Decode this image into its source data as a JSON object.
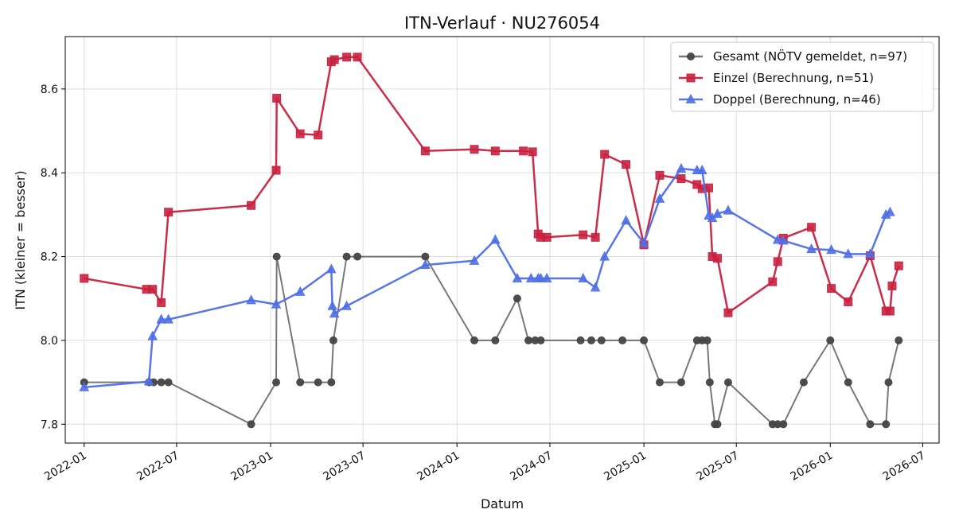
{
  "chart_data": {
    "type": "line",
    "title": "ITN-Verlauf · NU276054",
    "xlabel": "Datum",
    "ylabel": "ITN  (kleiner = besser)",
    "xlim": [
      "2021-11-25",
      "2026-08-02"
    ],
    "ylim": [
      7.755,
      8.725
    ],
    "x_ticks": [
      "2022-01",
      "2022-07",
      "2023-01",
      "2023-07",
      "2024-01",
      "2024-07",
      "2025-01",
      "2025-07",
      "2026-01",
      "2026-07"
    ],
    "y_ticks": [
      7.8,
      8.0,
      8.2,
      8.4,
      8.6
    ],
    "grid": true,
    "legend_position": "top-right",
    "series": [
      {
        "name": "Gesamt (NÖTV gemeldet, n=97)",
        "color": "#444444",
        "marker": "circle",
        "points": [
          [
            "2022-01-01",
            7.9
          ],
          [
            "2022-05-08",
            7.9
          ],
          [
            "2022-05-17",
            7.9
          ],
          [
            "2022-06-01",
            7.9
          ],
          [
            "2022-06-15",
            7.9
          ],
          [
            "2022-11-24",
            7.8
          ],
          [
            "2023-01-12",
            7.9
          ],
          [
            "2023-01-13",
            8.2
          ],
          [
            "2023-02-28",
            7.9
          ],
          [
            "2023-04-04",
            7.9
          ],
          [
            "2023-04-30",
            7.9
          ],
          [
            "2023-05-04",
            8.0
          ],
          [
            "2023-05-30",
            8.2
          ],
          [
            "2023-06-20",
            8.2
          ],
          [
            "2023-10-31",
            8.2
          ],
          [
            "2024-02-04",
            8.0
          ],
          [
            "2024-03-16",
            8.0
          ],
          [
            "2024-04-28",
            8.1
          ],
          [
            "2024-05-20",
            8.0
          ],
          [
            "2024-06-02",
            8.0
          ],
          [
            "2024-06-13",
            8.0
          ],
          [
            "2024-08-30",
            8.0
          ],
          [
            "2024-09-20",
            8.0
          ],
          [
            "2024-10-10",
            8.0
          ],
          [
            "2024-11-20",
            8.0
          ],
          [
            "2025-01-01",
            8.0
          ],
          [
            "2025-02-01",
            7.9
          ],
          [
            "2025-03-15",
            7.9
          ],
          [
            "2025-04-15",
            8.0
          ],
          [
            "2025-04-25",
            8.0
          ],
          [
            "2025-05-05",
            8.0
          ],
          [
            "2025-05-10",
            7.9
          ],
          [
            "2025-05-20",
            7.8
          ],
          [
            "2025-05-25",
            7.8
          ],
          [
            "2025-06-15",
            7.9
          ],
          [
            "2025-09-10",
            7.8
          ],
          [
            "2025-09-20",
            7.8
          ],
          [
            "2025-10-01",
            7.8
          ],
          [
            "2025-11-10",
            7.9
          ],
          [
            "2026-01-01",
            8.0
          ],
          [
            "2026-02-05",
            7.9
          ],
          [
            "2026-03-20",
            7.8
          ],
          [
            "2026-04-20",
            7.8
          ],
          [
            "2026-04-25",
            7.9
          ],
          [
            "2026-05-15",
            8.0
          ]
        ]
      },
      {
        "name": "Einzel (Berechnung, n=51)",
        "color": "#c8213f",
        "marker": "square",
        "points": [
          [
            "2022-01-01",
            8.148
          ],
          [
            "2022-05-03",
            8.122
          ],
          [
            "2022-05-15",
            8.122
          ],
          [
            "2022-06-01",
            8.09
          ],
          [
            "2022-06-15",
            8.306
          ],
          [
            "2022-11-24",
            8.322
          ],
          [
            "2023-01-12",
            8.406
          ],
          [
            "2023-01-13",
            8.578
          ],
          [
            "2023-02-28",
            8.493
          ],
          [
            "2023-04-04",
            8.49
          ],
          [
            "2023-04-30",
            8.665
          ],
          [
            "2023-05-06",
            8.67
          ],
          [
            "2023-05-30",
            8.676
          ],
          [
            "2023-06-20",
            8.676
          ],
          [
            "2023-10-31",
            8.452
          ],
          [
            "2024-02-04",
            8.456
          ],
          [
            "2024-03-16",
            8.452
          ],
          [
            "2024-05-10",
            8.452
          ],
          [
            "2024-05-28",
            8.45
          ],
          [
            "2024-06-08",
            8.254
          ],
          [
            "2024-06-13",
            8.246
          ],
          [
            "2024-06-25",
            8.246
          ],
          [
            "2024-09-04",
            8.252
          ],
          [
            "2024-09-28",
            8.246
          ],
          [
            "2024-10-16",
            8.444
          ],
          [
            "2024-11-27",
            8.42
          ],
          [
            "2025-01-01",
            8.228
          ],
          [
            "2025-02-01",
            8.394
          ],
          [
            "2025-03-15",
            8.386
          ],
          [
            "2025-04-15",
            8.372
          ],
          [
            "2025-04-25",
            8.362
          ],
          [
            "2025-05-08",
            8.364
          ],
          [
            "2025-05-15",
            8.2
          ],
          [
            "2025-05-25",
            8.196
          ],
          [
            "2025-06-15",
            8.066
          ],
          [
            "2025-09-10",
            8.14
          ],
          [
            "2025-09-20",
            8.188
          ],
          [
            "2025-10-01",
            8.244
          ],
          [
            "2025-11-25",
            8.27
          ],
          [
            "2026-01-03",
            8.124
          ],
          [
            "2026-02-05",
            8.092
          ],
          [
            "2026-03-20",
            8.202
          ],
          [
            "2026-04-20",
            8.07
          ],
          [
            "2026-04-28",
            8.07
          ],
          [
            "2026-05-02",
            8.13
          ],
          [
            "2026-05-15",
            8.178
          ]
        ]
      },
      {
        "name": "Doppel (Berechnung, n=46)",
        "color": "#4f6fe6",
        "marker": "triangle",
        "points": [
          [
            "2022-01-01",
            7.888
          ],
          [
            "2022-05-08",
            7.902
          ],
          [
            "2022-05-15",
            8.01
          ],
          [
            "2022-06-01",
            8.05
          ],
          [
            "2022-06-15",
            8.05
          ],
          [
            "2022-11-24",
            8.096
          ],
          [
            "2023-01-12",
            8.086
          ],
          [
            "2023-02-28",
            8.116
          ],
          [
            "2023-04-30",
            8.17
          ],
          [
            "2023-05-02",
            8.082
          ],
          [
            "2023-05-06",
            8.064
          ],
          [
            "2023-05-30",
            8.082
          ],
          [
            "2023-10-31",
            8.18
          ],
          [
            "2024-02-04",
            8.19
          ],
          [
            "2024-03-16",
            8.24
          ],
          [
            "2024-04-28",
            8.148
          ],
          [
            "2024-05-25",
            8.148
          ],
          [
            "2024-06-08",
            8.148
          ],
          [
            "2024-06-13",
            8.148
          ],
          [
            "2024-06-25",
            8.148
          ],
          [
            "2024-09-04",
            8.148
          ],
          [
            "2024-09-28",
            8.126
          ],
          [
            "2024-10-16",
            8.2
          ],
          [
            "2024-11-27",
            8.286
          ],
          [
            "2025-01-01",
            8.232
          ],
          [
            "2025-02-01",
            8.338
          ],
          [
            "2025-03-15",
            8.41
          ],
          [
            "2025-04-15",
            8.406
          ],
          [
            "2025-04-25",
            8.406
          ],
          [
            "2025-05-08",
            8.298
          ],
          [
            "2025-05-15",
            8.292
          ],
          [
            "2025-05-25",
            8.302
          ],
          [
            "2025-06-15",
            8.31
          ],
          [
            "2025-09-20",
            8.24
          ],
          [
            "2025-10-01",
            8.238
          ],
          [
            "2025-11-25",
            8.218
          ],
          [
            "2026-01-03",
            8.216
          ],
          [
            "2026-02-05",
            8.206
          ],
          [
            "2026-03-20",
            8.206
          ],
          [
            "2026-04-20",
            8.3
          ],
          [
            "2026-04-28",
            8.306
          ]
        ]
      }
    ]
  }
}
